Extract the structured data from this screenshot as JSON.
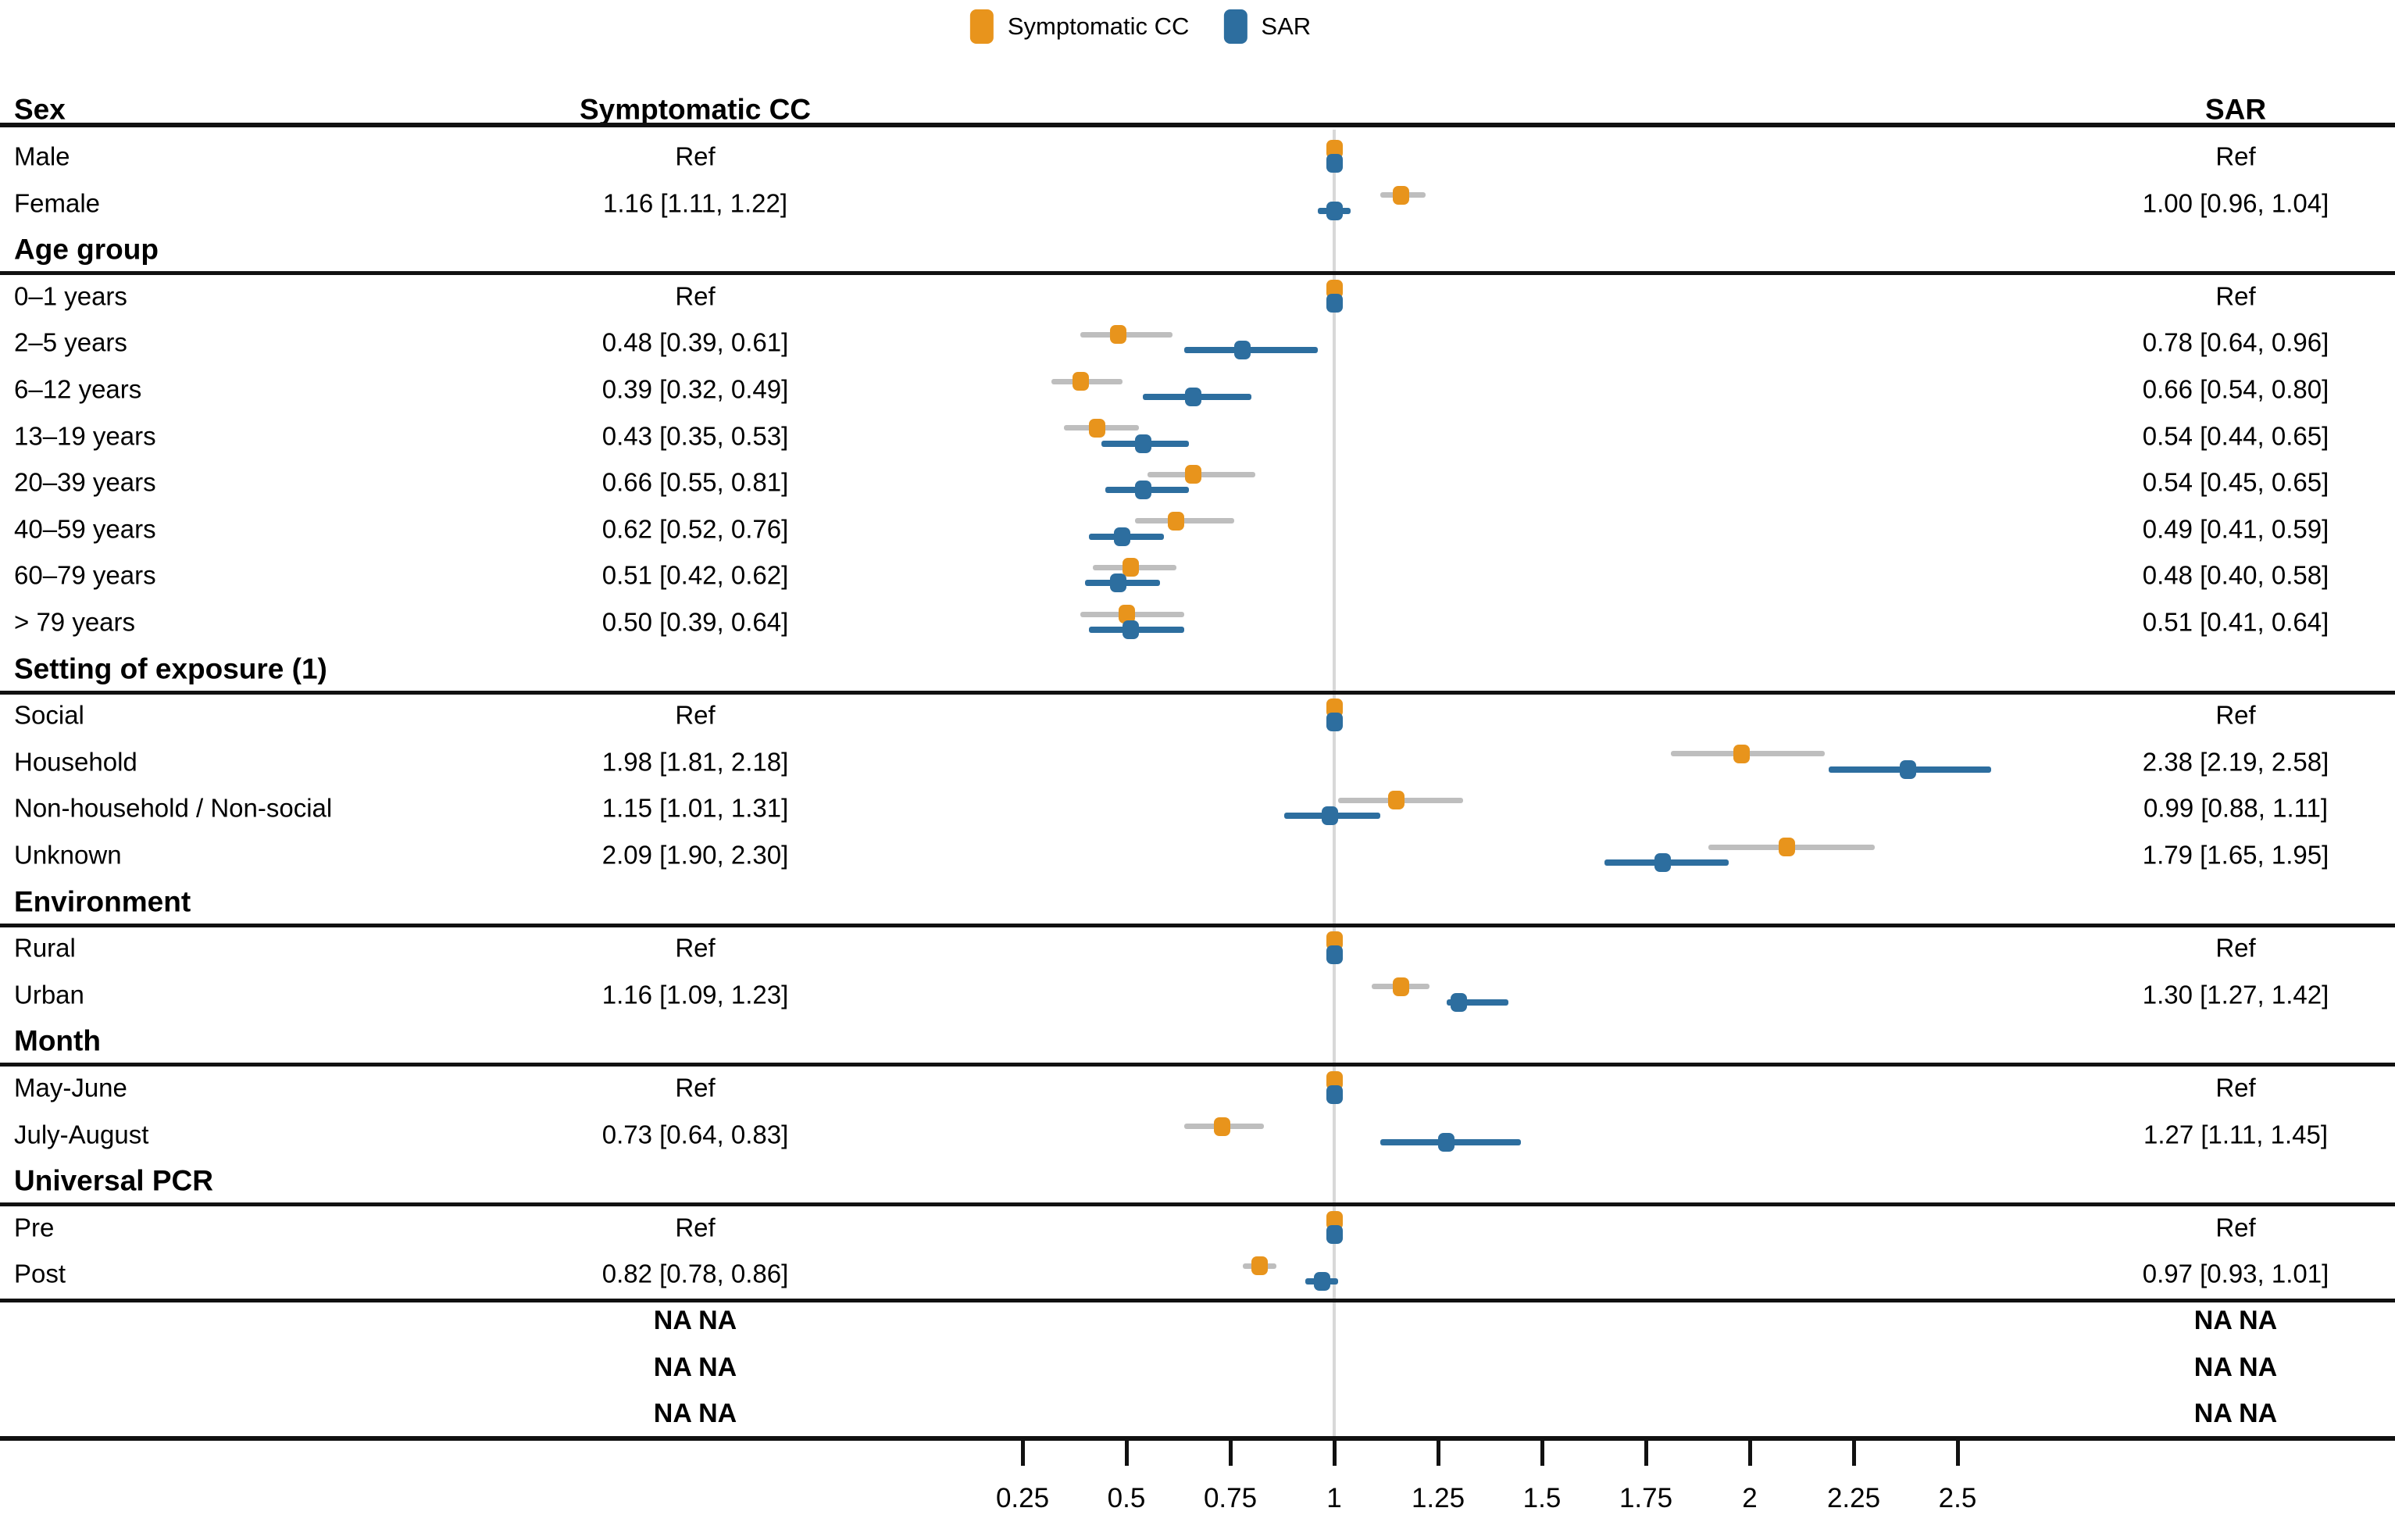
{
  "chart_data": {
    "type": "forest",
    "legend": [
      {
        "label": "Symptomatic CC",
        "color": "#E8941C"
      },
      {
        "label": "SAR",
        "color": "#2D6E9F"
      }
    ],
    "columns": {
      "left_header": "Sex",
      "mid_header": "Symptomatic CC",
      "right_header": "SAR"
    },
    "colors": {
      "cc": "#E8941C",
      "sar": "#2D6E9F",
      "ci_gray": "#BEBEBE",
      "ref_line": "#D8D8D8",
      "rule": "#111111"
    },
    "x_axis": {
      "ref_value": 1,
      "values": [
        0.25,
        0.5,
        0.75,
        1,
        1.25,
        1.5,
        1.75,
        2,
        2.25,
        2.5
      ],
      "ticks": [
        "0.25",
        "0.5",
        "0.75",
        "1",
        "1.25",
        "1.5",
        "1.75",
        "2",
        "2.25",
        "2.5"
      ]
    },
    "rows": [
      {
        "type": "item",
        "label": "Male",
        "cc_text": "Ref",
        "sar_text": "Ref",
        "ref": true
      },
      {
        "type": "item",
        "label": "Female",
        "cc_text": "1.16 [1.11, 1.22]",
        "sar_text": "1.00 [0.96, 1.04]",
        "cc": {
          "est": 1.16,
          "lo": 1.11,
          "hi": 1.22
        },
        "sar": {
          "est": 1.0,
          "lo": 0.96,
          "hi": 1.04
        }
      },
      {
        "type": "section",
        "label": "Age group"
      },
      {
        "type": "item",
        "label": "0–1 years",
        "cc_text": "Ref",
        "sar_text": "Ref",
        "ref": true
      },
      {
        "type": "item",
        "label": "2–5 years",
        "cc_text": "0.48 [0.39, 0.61]",
        "sar_text": "0.78 [0.64, 0.96]",
        "cc": {
          "est": 0.48,
          "lo": 0.39,
          "hi": 0.61
        },
        "sar": {
          "est": 0.78,
          "lo": 0.64,
          "hi": 0.96
        }
      },
      {
        "type": "item",
        "label": "6–12 years",
        "cc_text": "0.39 [0.32, 0.49]",
        "sar_text": "0.66 [0.54, 0.80]",
        "cc": {
          "est": 0.39,
          "lo": 0.32,
          "hi": 0.49
        },
        "sar": {
          "est": 0.66,
          "lo": 0.54,
          "hi": 0.8
        }
      },
      {
        "type": "item",
        "label": "13–19 years",
        "cc_text": "0.43 [0.35, 0.53]",
        "sar_text": "0.54 [0.44, 0.65]",
        "cc": {
          "est": 0.43,
          "lo": 0.35,
          "hi": 0.53
        },
        "sar": {
          "est": 0.54,
          "lo": 0.44,
          "hi": 0.65
        }
      },
      {
        "type": "item",
        "label": "20–39 years",
        "cc_text": "0.66 [0.55, 0.81]",
        "sar_text": "0.54 [0.45, 0.65]",
        "cc": {
          "est": 0.66,
          "lo": 0.55,
          "hi": 0.81
        },
        "sar": {
          "est": 0.54,
          "lo": 0.45,
          "hi": 0.65
        }
      },
      {
        "type": "item",
        "label": "40–59 years",
        "cc_text": "0.62 [0.52, 0.76]",
        "sar_text": "0.49 [0.41, 0.59]",
        "cc": {
          "est": 0.62,
          "lo": 0.52,
          "hi": 0.76
        },
        "sar": {
          "est": 0.49,
          "lo": 0.41,
          "hi": 0.59
        }
      },
      {
        "type": "item",
        "label": "60–79 years",
        "cc_text": "0.51 [0.42, 0.62]",
        "sar_text": "0.48 [0.40, 0.58]",
        "cc": {
          "est": 0.51,
          "lo": 0.42,
          "hi": 0.62
        },
        "sar": {
          "est": 0.48,
          "lo": 0.4,
          "hi": 0.58
        }
      },
      {
        "type": "item",
        "label": "> 79 years",
        "cc_text": "0.50 [0.39, 0.64]",
        "sar_text": "0.51 [0.41, 0.64]",
        "cc": {
          "est": 0.5,
          "lo": 0.39,
          "hi": 0.64
        },
        "sar": {
          "est": 0.51,
          "lo": 0.41,
          "hi": 0.64
        }
      },
      {
        "type": "section",
        "label": "Setting of exposure (1)"
      },
      {
        "type": "item",
        "label": "Social",
        "cc_text": "Ref",
        "sar_text": "Ref",
        "ref": true
      },
      {
        "type": "item",
        "label": "Household",
        "cc_text": "1.98 [1.81, 2.18]",
        "sar_text": "2.38 [2.19, 2.58]",
        "cc": {
          "est": 1.98,
          "lo": 1.81,
          "hi": 2.18
        },
        "sar": {
          "est": 2.38,
          "lo": 2.19,
          "hi": 2.58
        }
      },
      {
        "type": "item",
        "label": "Non-household / Non-social",
        "cc_text": "1.15 [1.01, 1.31]",
        "sar_text": "0.99 [0.88, 1.11]",
        "cc": {
          "est": 1.15,
          "lo": 1.01,
          "hi": 1.31
        },
        "sar": {
          "est": 0.99,
          "lo": 0.88,
          "hi": 1.11
        }
      },
      {
        "type": "item",
        "label": "Unknown",
        "cc_text": "2.09 [1.90, 2.30]",
        "sar_text": "1.79 [1.65, 1.95]",
        "cc": {
          "est": 2.09,
          "lo": 1.9,
          "hi": 2.3
        },
        "sar": {
          "est": 1.79,
          "lo": 1.65,
          "hi": 1.95
        }
      },
      {
        "type": "section",
        "label": "Environment"
      },
      {
        "type": "item",
        "label": "Rural",
        "cc_text": "Ref",
        "sar_text": "Ref",
        "ref": true
      },
      {
        "type": "item",
        "label": "Urban",
        "cc_text": "1.16 [1.09, 1.23]",
        "sar_text": "1.30 [1.27, 1.42]",
        "cc": {
          "est": 1.16,
          "lo": 1.09,
          "hi": 1.23
        },
        "sar": {
          "est": 1.3,
          "lo": 1.27,
          "hi": 1.42
        }
      },
      {
        "type": "section",
        "label": "Month"
      },
      {
        "type": "item",
        "label": "May-June",
        "cc_text": "Ref",
        "sar_text": "Ref",
        "ref": true
      },
      {
        "type": "item",
        "label": "July-August",
        "cc_text": "0.73 [0.64, 0.83]",
        "sar_text": "1.27 [1.11, 1.45]",
        "cc": {
          "est": 0.73,
          "lo": 0.64,
          "hi": 0.83
        },
        "sar": {
          "est": 1.27,
          "lo": 1.11,
          "hi": 1.45
        }
      },
      {
        "type": "section",
        "label": "Universal PCR"
      },
      {
        "type": "item",
        "label": "Pre",
        "cc_text": "Ref",
        "sar_text": "Ref",
        "ref": true
      },
      {
        "type": "item",
        "label": "Post",
        "cc_text": "0.82 [0.78, 0.86]",
        "sar_text": "0.97 [0.93, 1.01]",
        "cc": {
          "est": 0.82,
          "lo": 0.78,
          "hi": 0.86
        },
        "sar": {
          "est": 0.97,
          "lo": 0.93,
          "hi": 1.01
        },
        "line_after": true
      },
      {
        "type": "na",
        "cc_text": "NA NA",
        "sar_text": "NA NA"
      },
      {
        "type": "na",
        "cc_text": "NA NA",
        "sar_text": "NA NA"
      },
      {
        "type": "na",
        "cc_text": "NA NA",
        "sar_text": "NA NA"
      }
    ]
  }
}
